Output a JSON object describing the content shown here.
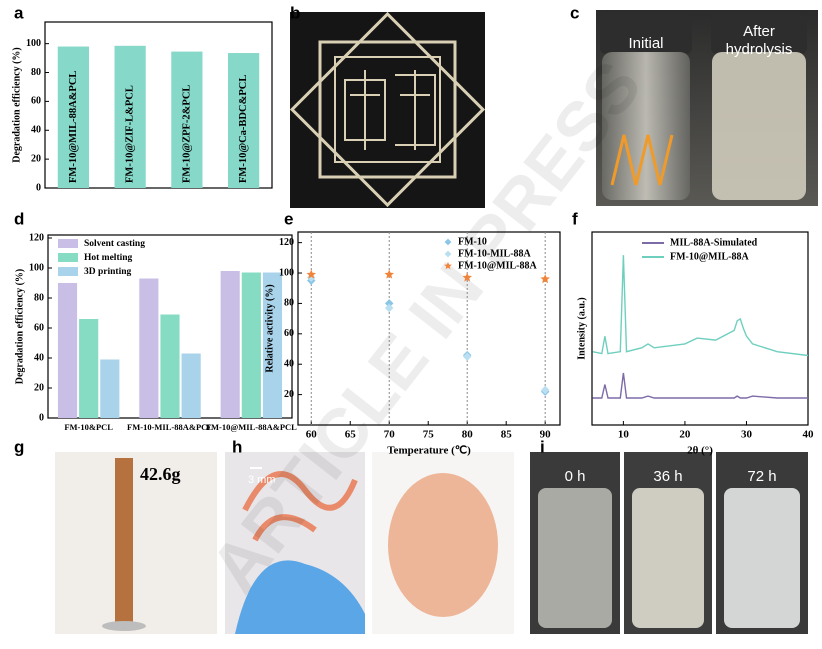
{
  "panel_labels": [
    "a",
    "b",
    "c",
    "d",
    "e",
    "f",
    "g",
    "h",
    "i"
  ],
  "photo_texts": {
    "initial": "Initial",
    "after_hydrolysis": [
      "After",
      "hydrolysis"
    ],
    "mass": "42.6g",
    "scale": "3 mm",
    "times": [
      "0 h",
      "36 h",
      "72 h"
    ]
  },
  "watermark": "ARTICLE IN PRESS",
  "chart_data": [
    {
      "type": "bar",
      "ylabel": "Degradation efficiency (%)",
      "categories": [
        "FM-10@MIL-88A&PCL",
        "FM-10@ZIF-L&PCL",
        "FM-10@ZPF-2&PCL",
        "FM-10@Ca-BDC&PCL"
      ],
      "values": [
        98,
        98.5,
        94.5,
        93.5
      ],
      "color": "#86d8c9",
      "ylim": [
        0,
        115
      ],
      "yticks": [
        0,
        20,
        40,
        60,
        80,
        100
      ]
    },
    {
      "type": "bar",
      "ylabel": "Degradation efficiency (%)",
      "categories": [
        "FM-10&PCL",
        "FM-10-MIL-88A&PCL",
        "FM-10@MIL-88A&PCL"
      ],
      "series": [
        {
          "name": "Solvent casting",
          "color": "#c9bfe6",
          "values": [
            90,
            93,
            98
          ]
        },
        {
          "name": "Hot melting",
          "color": "#86dcc3",
          "values": [
            66,
            69,
            97
          ]
        },
        {
          "name": "3D printing",
          "color": "#a9d3ea",
          "values": [
            39,
            43,
            97
          ]
        }
      ],
      "ylim": [
        0,
        122
      ],
      "yticks": [
        0,
        20,
        40,
        60,
        80,
        100,
        120
      ]
    },
    {
      "type": "scatter",
      "xlabel": "Temperature (℃)",
      "ylabel": "Relative activity (%)",
      "x": [
        60,
        70,
        80,
        90
      ],
      "series": [
        {
          "name": "FM-10",
          "color": "#8cc6e6",
          "marker": "diamond",
          "values": [
            95,
            80,
            46,
            22
          ]
        },
        {
          "name": "FM-10-MIL-88A",
          "color": "#b9dff0",
          "marker": "diamond",
          "values": [
            97,
            77,
            45,
            23
          ]
        },
        {
          "name": "FM-10@MIL-88A",
          "color": "#f0843a",
          "marker": "star",
          "values": [
            99,
            99,
            97,
            96
          ]
        }
      ],
      "xlim": [
        58.3,
        91.9
      ],
      "xticks": [
        60,
        65,
        70,
        75,
        80,
        85,
        90
      ],
      "ylim": [
        0,
        127
      ],
      "yticks": [
        20,
        40,
        60,
        80,
        100,
        120
      ]
    },
    {
      "type": "line",
      "xlabel": "2θ (°)",
      "ylabel": "Intensity (a.u.)",
      "x": [
        5,
        6.5,
        7,
        7.5,
        9.5,
        10,
        10.5,
        13,
        14,
        15,
        20,
        22,
        25,
        28,
        28.5,
        29,
        29.5,
        30,
        31,
        35,
        40
      ],
      "series": [
        {
          "name": "MIL-88A-Simulated",
          "color": "#7d6ba8",
          "values": [
            14,
            14,
            21,
            14,
            14,
            27,
            14,
            14,
            15,
            14,
            14,
            14,
            14,
            14,
            15,
            14,
            14,
            14,
            15,
            14,
            14
          ]
        },
        {
          "name": "FM-10@MIL-88A",
          "color": "#6fcfbf",
          "values": [
            38,
            37,
            46,
            37,
            38,
            88,
            38,
            40,
            42,
            40,
            42,
            45,
            44,
            49,
            54,
            55,
            50,
            46,
            42,
            38,
            36
          ]
        }
      ],
      "xlim": [
        4.9,
        40
      ],
      "xticks": [
        10,
        20,
        30,
        40
      ],
      "ylim": [
        0,
        100
      ]
    }
  ]
}
